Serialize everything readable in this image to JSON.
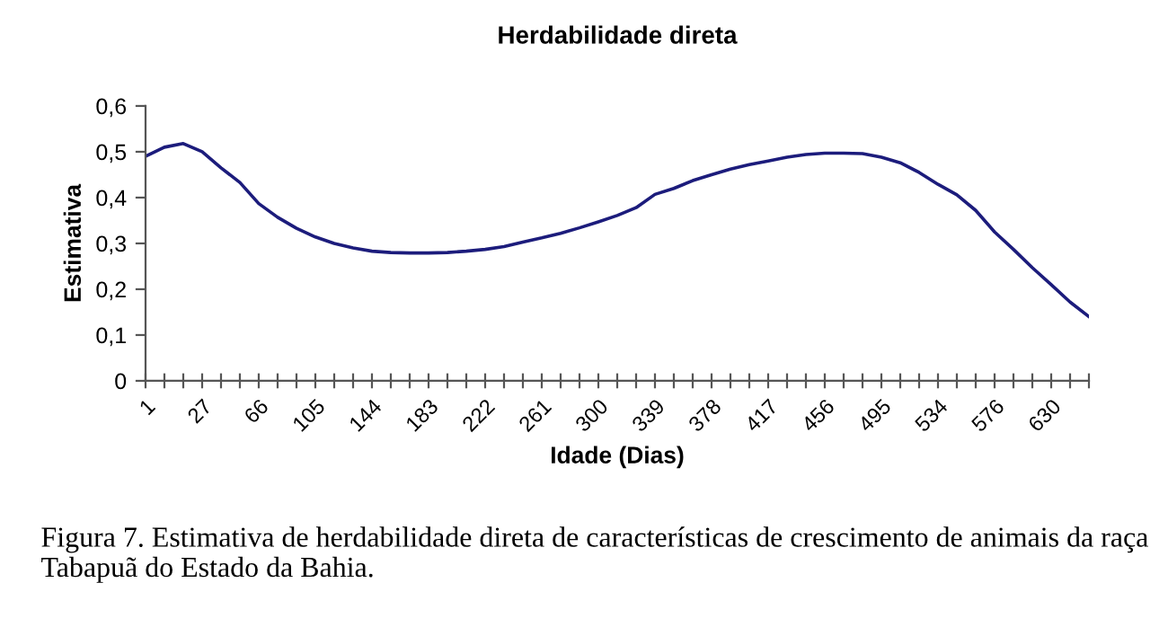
{
  "chart_data": {
    "type": "line",
    "title": "Herdabilidade direta",
    "xlabel": "Idade (Dias)",
    "ylabel": "Estimativa",
    "categories": [
      "1",
      null,
      null,
      "27",
      null,
      null,
      "66",
      null,
      null,
      "105",
      null,
      null,
      "144",
      null,
      null,
      "183",
      null,
      null,
      "222",
      null,
      null,
      "261",
      null,
      null,
      "300",
      null,
      null,
      "339",
      null,
      null,
      "378",
      null,
      null,
      "417",
      null,
      null,
      "456",
      null,
      null,
      "495",
      null,
      null,
      "534",
      null,
      null,
      "576",
      null,
      null,
      "630",
      null,
      null
    ],
    "series": [
      {
        "color": "#1c1c7c",
        "values": [
          0.49,
          0.51,
          0.518,
          0.5,
          0.465,
          0.433,
          0.387,
          0.357,
          0.333,
          0.314,
          0.3,
          0.29,
          0.283,
          0.28,
          0.279,
          0.279,
          0.28,
          0.283,
          0.287,
          0.293,
          0.303,
          0.312,
          0.322,
          0.334,
          0.347,
          0.361,
          0.378,
          0.407,
          0.42,
          0.437,
          0.45,
          0.462,
          0.472,
          0.48,
          0.488,
          0.494,
          0.497,
          0.497,
          0.496,
          0.488,
          0.476,
          0.455,
          0.429,
          0.406,
          0.372,
          0.325,
          0.287,
          0.247,
          0.21,
          0.172,
          0.14
        ]
      }
    ],
    "ylim": [
      0,
      0.6
    ],
    "yticks": [
      0,
      {
        "value": 0.1,
        "label": "0,1"
      },
      {
        "value": 0.2,
        "label": "0,2"
      },
      {
        "value": 0.3,
        "label": "0,3"
      },
      {
        "value": 0.4,
        "label": "0,4"
      },
      {
        "value": 0.5,
        "label": "0,5"
      },
      {
        "value": 0.6,
        "label": "0,6"
      }
    ],
    "grid": false,
    "legend": false,
    "marker": "none",
    "line_style": "solid",
    "annotations": [
      "Figura 7. Estimativa de herdabilidade direta de características de crescimento de animais da raça Tabapuã do Estado da Bahia."
    ]
  }
}
